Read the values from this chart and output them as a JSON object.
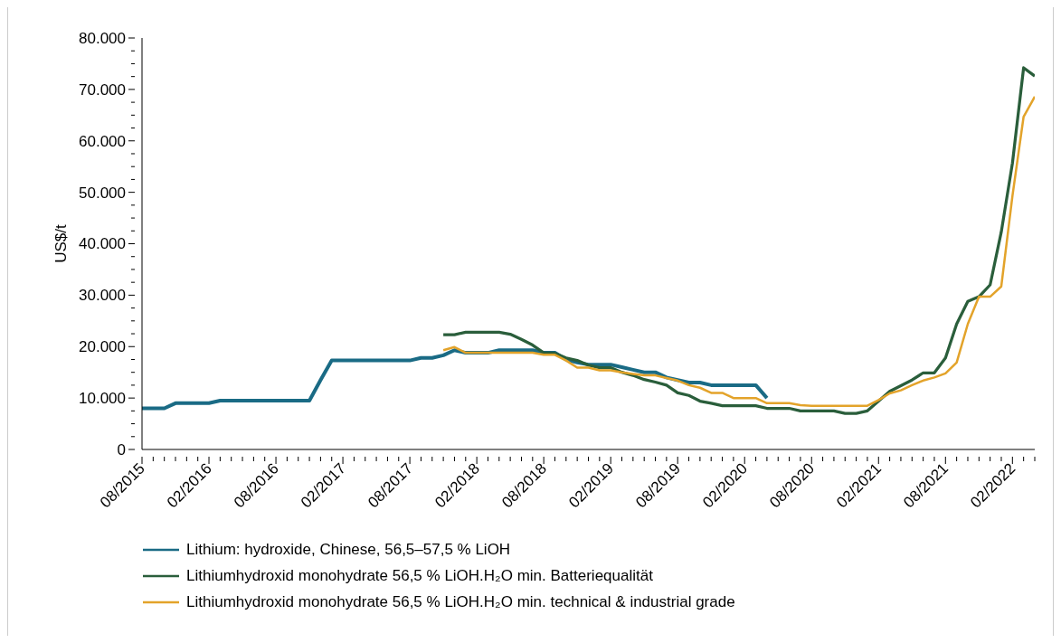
{
  "chart_data": {
    "type": "line",
    "ylabel": "US$/t",
    "categories": [
      "08/2015",
      null,
      null,
      null,
      null,
      null,
      "02/2016",
      null,
      null,
      null,
      null,
      null,
      "08/2016",
      null,
      null,
      null,
      null,
      null,
      "02/2017",
      null,
      null,
      null,
      null,
      null,
      "08/2017",
      null,
      null,
      null,
      null,
      null,
      "02/2018",
      null,
      null,
      null,
      null,
      null,
      "08/2018",
      null,
      null,
      null,
      null,
      null,
      "02/2019",
      null,
      null,
      null,
      null,
      null,
      "08/2019",
      null,
      null,
      null,
      null,
      null,
      "02/2020",
      null,
      null,
      null,
      null,
      null,
      "08/2020",
      null,
      null,
      null,
      null,
      null,
      "02/2021",
      null,
      null,
      null,
      null,
      null,
      "08/2021",
      null,
      null,
      null,
      null,
      null,
      "02/2022",
      null,
      null
    ],
    "series": [
      {
        "name": "Lithium: hydroxide, Chinese, 56,5–57,5 % LiOH",
        "color": "#1a6b85",
        "values": [
          8000,
          8000,
          8000,
          9000,
          9000,
          9000,
          9000,
          9500,
          9500,
          9500,
          9500,
          9500,
          9500,
          9500,
          9500,
          9500,
          13500,
          17300,
          17300,
          17300,
          17300,
          17300,
          17300,
          17300,
          17300,
          17800,
          17800,
          18300,
          19300,
          18800,
          18800,
          18800,
          19300,
          19300,
          19300,
          19300,
          18800,
          18800,
          17500,
          16900,
          16500,
          16500,
          16500,
          16000,
          15500,
          15000,
          15000,
          14000,
          13500,
          13000,
          13000,
          12500,
          12500,
          12500,
          12500,
          12500,
          10000,
          null,
          null,
          null,
          null,
          null,
          null,
          null,
          null,
          null,
          null,
          null,
          null,
          null,
          null,
          null,
          null,
          null,
          null,
          null,
          null,
          null,
          null,
          null,
          null
        ]
      },
      {
        "name": "Lithiumhydroxid monohydrate 56,5 % LiOH.H₂O min. Batteriequalität",
        "color": "#2a5e3b",
        "values": [
          null,
          null,
          null,
          null,
          null,
          null,
          null,
          null,
          null,
          null,
          null,
          null,
          null,
          null,
          null,
          null,
          null,
          null,
          null,
          null,
          null,
          null,
          null,
          null,
          null,
          null,
          null,
          22300,
          22300,
          22800,
          22800,
          22800,
          22800,
          22400,
          21400,
          20300,
          18800,
          18700,
          17800,
          17300,
          16400,
          15900,
          15900,
          15000,
          14400,
          13600,
          13100,
          12500,
          11000,
          10500,
          9400,
          9000,
          8500,
          8500,
          8500,
          8500,
          8000,
          8000,
          8000,
          7500,
          7500,
          7500,
          7500,
          7000,
          7000,
          7500,
          9400,
          11300,
          12400,
          13500,
          14900,
          14900,
          17800,
          24400,
          28800,
          29700,
          32000,
          42300,
          55700,
          74200,
          72600
        ]
      },
      {
        "name": "Lithiumhydroxid monohydrate 56,5 % LiOH.H₂O min. technical & industrial grade",
        "color": "#e3a32a",
        "values": [
          null,
          null,
          null,
          null,
          null,
          null,
          null,
          null,
          null,
          null,
          null,
          null,
          null,
          null,
          null,
          null,
          null,
          null,
          null,
          null,
          null,
          null,
          null,
          null,
          null,
          null,
          null,
          19300,
          19900,
          18800,
          18800,
          18800,
          18800,
          18800,
          18800,
          18800,
          18400,
          18400,
          17300,
          15900,
          15900,
          15400,
          15400,
          15000,
          14700,
          14400,
          14400,
          13900,
          13400,
          12500,
          12000,
          11000,
          11000,
          10000,
          10000,
          10000,
          9000,
          9000,
          9000,
          8600,
          8500,
          8500,
          8500,
          8500,
          8500,
          8500,
          9600,
          10900,
          11500,
          12500,
          13400,
          14000,
          14800,
          16900,
          24400,
          29700,
          29700,
          31700,
          49300,
          64700,
          68600
        ]
      }
    ],
    "ylim": [
      0,
      80000
    ],
    "yticks": [
      0,
      {
        "value": 2500,
        "label": null
      },
      {
        "value": 5000,
        "label": null
      },
      {
        "value": 7500,
        "label": null
      },
      {
        "value": 10000,
        "label": "10.000"
      },
      {
        "value": 12500,
        "label": null
      },
      {
        "value": 15000,
        "label": null
      },
      {
        "value": 17500,
        "label": null
      },
      {
        "value": 20000,
        "label": "20.000"
      },
      {
        "value": 22500,
        "label": null
      },
      {
        "value": 25000,
        "label": null
      },
      {
        "value": 27500,
        "label": null
      },
      {
        "value": 30000,
        "label": "30.000"
      },
      {
        "value": 32500,
        "label": null
      },
      {
        "value": 35000,
        "label": null
      },
      {
        "value": 37500,
        "label": null
      },
      {
        "value": 40000,
        "label": "40.000"
      },
      {
        "value": 42500,
        "label": null
      },
      {
        "value": 45000,
        "label": null
      },
      {
        "value": 47500,
        "label": null
      },
      {
        "value": 50000,
        "label": "50.000"
      },
      {
        "value": 52500,
        "label": null
      },
      {
        "value": 55000,
        "label": null
      },
      {
        "value": 57500,
        "label": null
      },
      {
        "value": 60000,
        "label": "60.000"
      },
      {
        "value": 62500,
        "label": null
      },
      {
        "value": 65000,
        "label": null
      },
      {
        "value": 67500,
        "label": null
      },
      {
        "value": 70000,
        "label": "70.000"
      },
      {
        "value": 72500,
        "label": null
      },
      {
        "value": 75000,
        "label": null
      },
      {
        "value": 77500,
        "label": null
      },
      {
        "value": 80000,
        "label": "80.000"
      }
    ],
    "grid": false,
    "legend": "bottom"
  }
}
